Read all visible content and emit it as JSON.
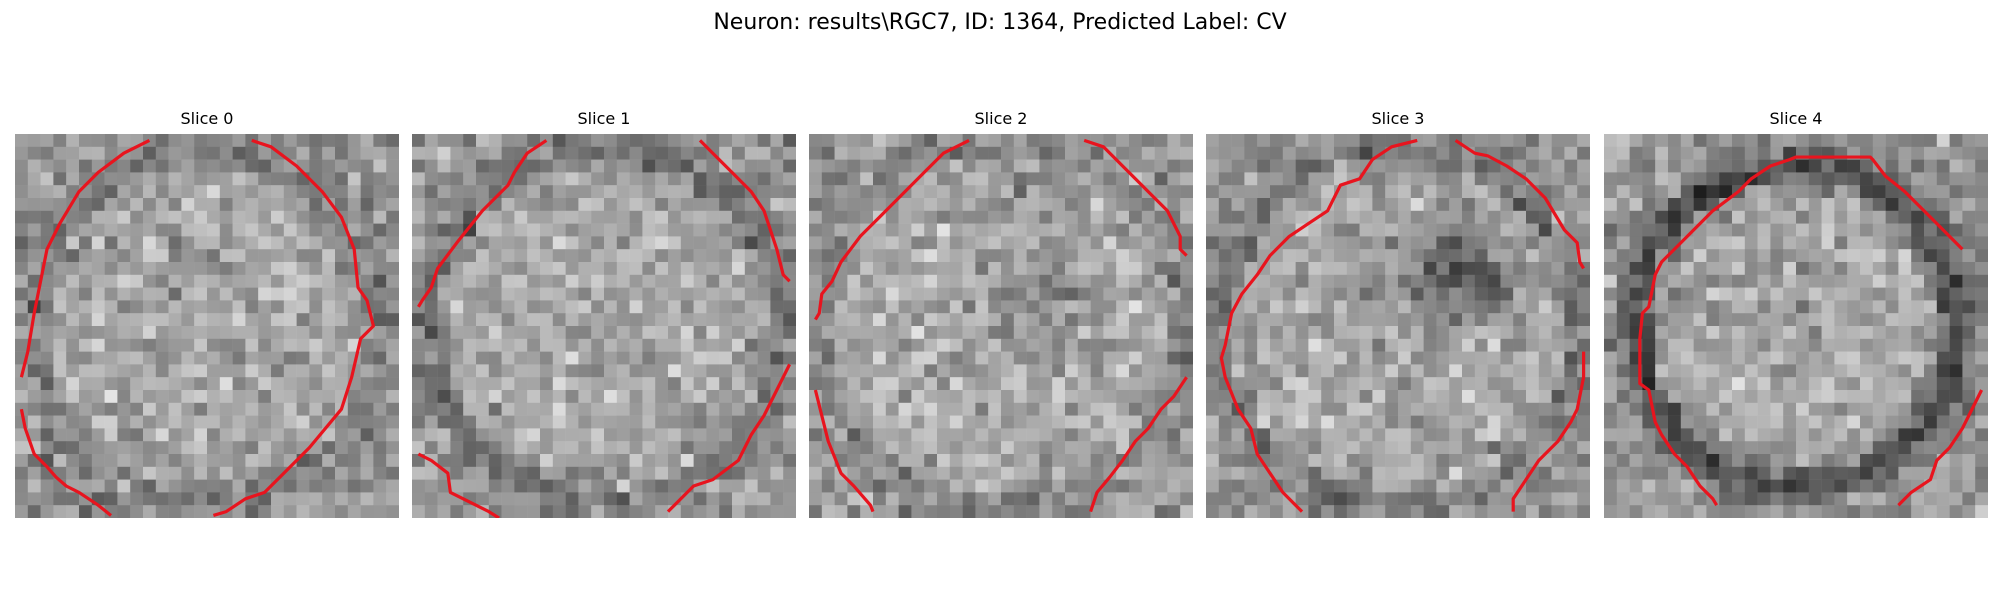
{
  "figure": {
    "title": "Neuron: results\\RGC7, ID: 1364, Predicted Label: CV"
  },
  "slices": [
    {
      "label": "Slice 0"
    },
    {
      "label": "Slice 1"
    },
    {
      "label": "Slice 2"
    },
    {
      "label": "Slice 3"
    },
    {
      "label": "Slice 4"
    }
  ],
  "colors": {
    "contour": "#e8141e",
    "background": "#ffffff"
  }
}
